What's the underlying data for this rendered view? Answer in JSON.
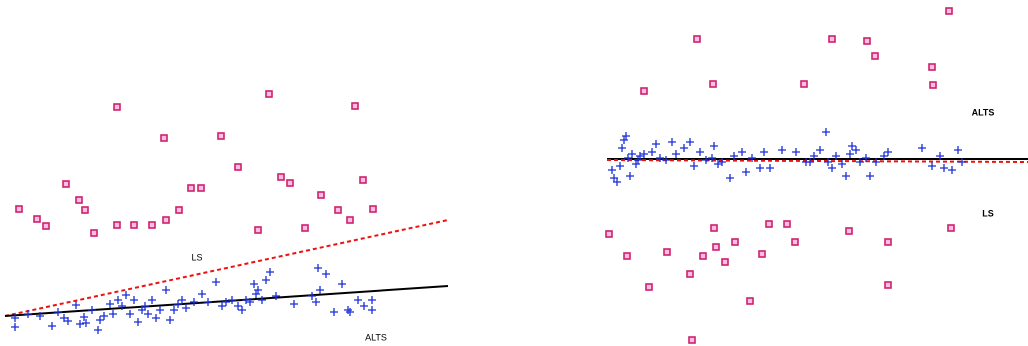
{
  "chart_data": [
    {
      "type": "scatter",
      "xlim": [
        0,
        450
      ],
      "ylim": [
        346,
        0
      ],
      "squares": {
        "color": "#cc2266",
        "x": [
          19,
          37,
          46,
          66,
          79,
          85,
          94,
          117,
          117,
          134,
          152,
          164,
          166,
          179,
          191,
          201,
          221,
          238,
          258,
          269,
          281,
          290,
          305,
          321,
          338,
          350,
          355,
          363,
          373
        ],
        "values": [
          209,
          219,
          226,
          184,
          200,
          210,
          233,
          107,
          225,
          225,
          225,
          138,
          220,
          210,
          188,
          188,
          136,
          167,
          230,
          94,
          177,
          183,
          228,
          195,
          210,
          220,
          106,
          180,
          209
        ]
      },
      "crosses": {
        "color": "#1a2fd6",
        "x": [
          15,
          15,
          28,
          40,
          52,
          58,
          64,
          68,
          76,
          80,
          84,
          86,
          92,
          98,
          100,
          104,
          110,
          113,
          118,
          122,
          126,
          130,
          134,
          138,
          142,
          145,
          148,
          152,
          156,
          160,
          166,
          170,
          174,
          178,
          182,
          186,
          194,
          202,
          208,
          216,
          222,
          226,
          232,
          238,
          242,
          246,
          250,
          254,
          256,
          258,
          262,
          266,
          270,
          276,
          294,
          312,
          316,
          320,
          318,
          326,
          334,
          342,
          348,
          350,
          358,
          364,
          372,
          372
        ],
        "values": [
          318,
          327,
          314,
          316,
          326,
          312,
          318,
          321,
          305,
          324,
          317,
          323,
          310,
          330,
          320,
          316,
          304,
          314,
          300,
          306,
          295,
          314,
          300,
          322,
          310,
          306,
          314,
          300,
          318,
          310,
          290,
          320,
          310,
          304,
          300,
          308,
          302,
          294,
          302,
          282,
          306,
          302,
          300,
          306,
          310,
          300,
          302,
          284,
          294,
          290,
          300,
          280,
          272,
          296,
          304,
          296,
          302,
          290,
          268,
          274,
          312,
          284,
          310,
          312,
          300,
          306,
          300,
          310
        ]
      },
      "lines": [
        {
          "x": [
            5,
            448
          ],
          "values": [
            316,
            220
          ],
          "color": "#ee1111",
          "dash": true
        },
        {
          "x": [
            5,
            448
          ],
          "values": [
            316,
            286
          ],
          "color": "#000000",
          "dash": false
        }
      ],
      "annotations": [
        {
          "text": "LS",
          "x": 197,
          "y": 258
        },
        {
          "text": "ALTS",
          "x": 376,
          "y": 338
        }
      ]
    },
    {
      "type": "scatter",
      "xlim": [
        600,
        1028
      ],
      "ylim": [
        346,
        0
      ],
      "squares": {
        "color": "#cc2266",
        "x": [
          697,
          644,
          713,
          832,
          867,
          875,
          804,
          949,
          932,
          933,
          609,
          627,
          667,
          690,
          649,
          714,
          716,
          703,
          725,
          735,
          762,
          769,
          787,
          795,
          750,
          849,
          888,
          888,
          951,
          692
        ],
        "values": [
          39,
          91,
          84,
          39,
          41,
          56,
          84,
          11,
          67,
          85,
          234,
          256,
          252,
          274,
          287,
          228,
          247,
          256,
          262,
          242,
          254,
          224,
          224,
          242,
          301,
          231,
          242,
          285,
          228,
          340
        ]
      },
      "crosses": {
        "color": "#1a2fd6",
        "x": [
          612,
          614,
          617,
          620,
          622,
          624,
          626,
          628,
          630,
          632,
          636,
          638,
          640,
          644,
          652,
          656,
          660,
          666,
          672,
          676,
          684,
          690,
          694,
          700,
          706,
          712,
          714,
          718,
          722,
          730,
          734,
          742,
          746,
          752,
          760,
          764,
          770,
          782,
          796,
          806,
          810,
          814,
          820,
          826,
          828,
          832,
          836,
          842,
          846,
          850,
          852,
          856,
          860,
          866,
          870,
          876,
          884,
          888,
          922,
          932,
          940,
          944,
          952,
          958,
          962
        ],
        "values": [
          170,
          178,
          182,
          166,
          148,
          140,
          136,
          158,
          176,
          154,
          164,
          160,
          156,
          154,
          152,
          144,
          158,
          160,
          142,
          154,
          148,
          142,
          166,
          152,
          160,
          158,
          146,
          164,
          162,
          178,
          156,
          152,
          172,
          158,
          168,
          152,
          168,
          150,
          152,
          162,
          162,
          156,
          150,
          132,
          162,
          168,
          156,
          164,
          176,
          154,
          146,
          150,
          162,
          158,
          176,
          162,
          156,
          152,
          148,
          166,
          156,
          168,
          170,
          150,
          162
        ]
      },
      "lines": [
        {
          "x": [
            607,
            1028
          ],
          "values": [
            159,
            159
          ],
          "color": "#000000",
          "dash": false
        },
        {
          "x": [
            607,
            1028
          ],
          "values": [
            160,
            162
          ],
          "color": "#ee1111",
          "dash": true
        }
      ],
      "annotations": [
        {
          "text": "ALTS",
          "x": 983,
          "y": 113
        },
        {
          "text": "LS",
          "x": 988,
          "y": 214
        }
      ]
    }
  ]
}
